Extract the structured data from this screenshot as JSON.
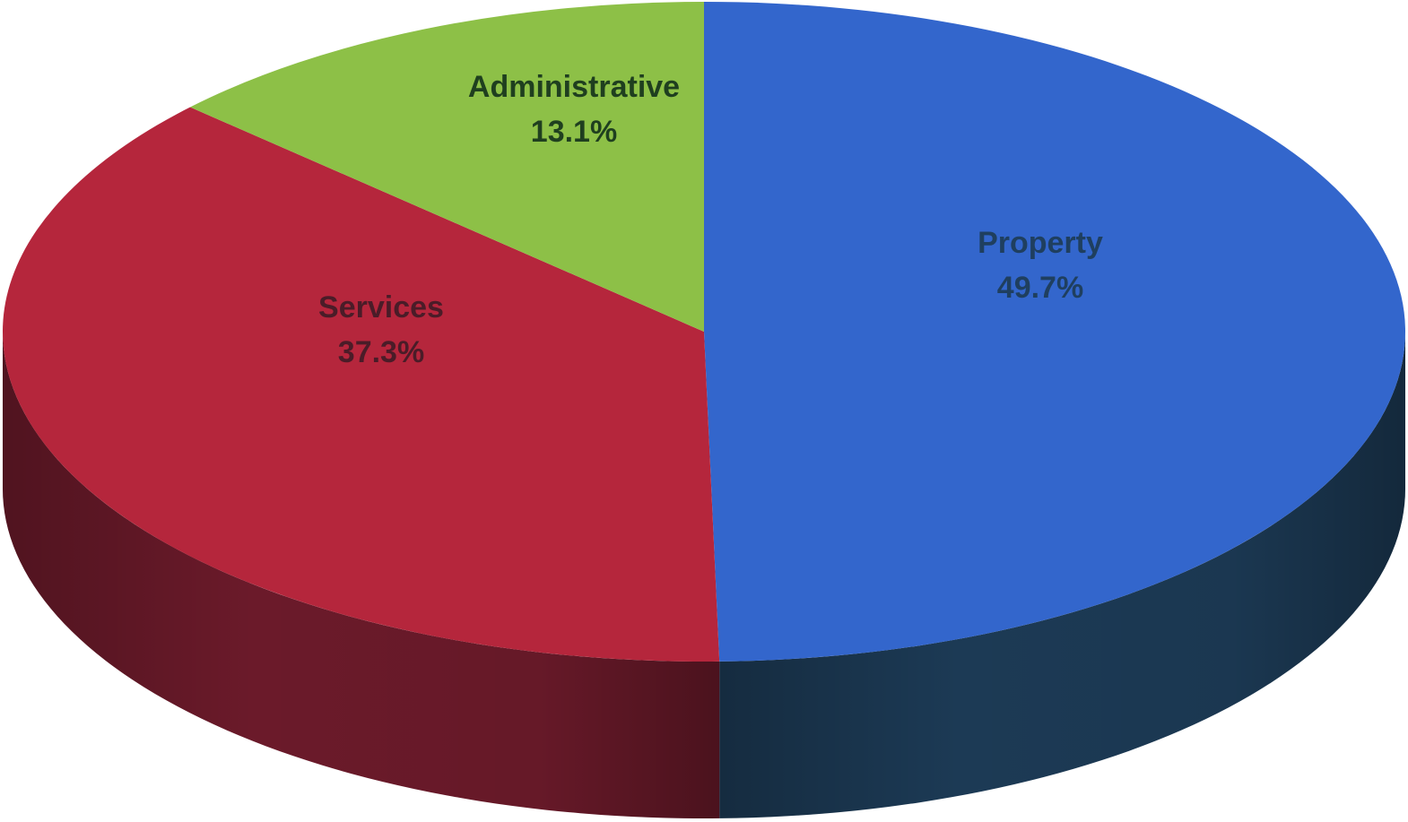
{
  "chart_data": {
    "type": "pie",
    "style": "3d",
    "title": "",
    "slices": [
      {
        "label": "Property",
        "value": 49.7,
        "value_text": "49.7%",
        "color": "#3366cc",
        "side_color": "#1c3a55",
        "label_color": "#1f3f5f"
      },
      {
        "label": "Services",
        "value": 37.3,
        "value_text": "37.3%",
        "color": "#b5263c",
        "side_color": "#6b1a2a",
        "label_color": "#4a1c28"
      },
      {
        "label": "Administrative",
        "value": 13.1,
        "value_text": "13.1%",
        "color": "#8dc047",
        "side_color": "#5a7a2a",
        "label_color": "#1f3f1f"
      }
    ],
    "start_position": "top",
    "direction": "clockwise",
    "legend": "none"
  }
}
